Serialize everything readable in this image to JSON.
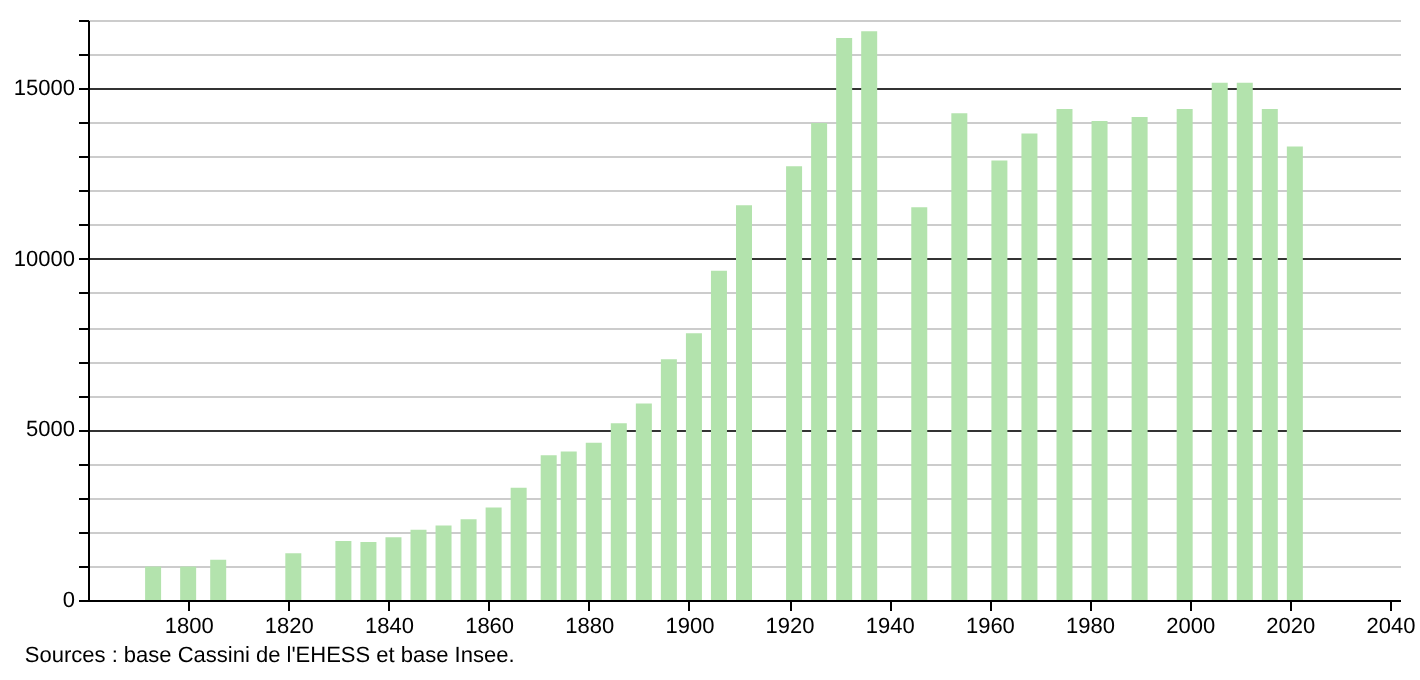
{
  "chart_data": {
    "type": "bar",
    "x": [
      1793,
      1800,
      1806,
      1821,
      1831,
      1836,
      1841,
      1846,
      1851,
      1856,
      1861,
      1866,
      1872,
      1876,
      1881,
      1886,
      1891,
      1896,
      1901,
      1906,
      1911,
      1921,
      1926,
      1931,
      1936,
      1946,
      1954,
      1962,
      1968,
      1975,
      1982,
      1990,
      1999,
      2006,
      2011,
      2016,
      2021
    ],
    "values": [
      980,
      980,
      1180,
      1370,
      1730,
      1700,
      1840,
      2060,
      2180,
      2370,
      2710,
      3290,
      4240,
      4350,
      4610,
      5180,
      5760,
      7060,
      7820,
      9650,
      11570,
      12710,
      13980,
      16470,
      16670,
      11510,
      14270,
      12880,
      13670,
      14390,
      14040,
      14160,
      14390,
      15160,
      15160,
      14390,
      13290
    ],
    "color": "#b3e3ad",
    "xlim": [
      1780,
      2042
    ],
    "xticks": [
      1800,
      1820,
      1840,
      1860,
      1880,
      1900,
      1920,
      1940,
      1960,
      1980,
      2000,
      2020,
      2040
    ],
    "ylim": [
      0,
      17000
    ],
    "yticks": [
      0,
      {
        "value": 1000,
        "label": null
      },
      {
        "value": 2000,
        "label": null
      },
      {
        "value": 3000,
        "label": null
      },
      {
        "value": 4000,
        "label": null
      },
      5000,
      {
        "value": 6000,
        "label": null
      },
      {
        "value": 7000,
        "label": null
      },
      {
        "value": 8000,
        "label": null
      },
      {
        "value": 9000,
        "label": null
      },
      10000,
      {
        "value": 11000,
        "label": null
      },
      {
        "value": 12000,
        "label": null
      },
      {
        "value": 13000,
        "label": null
      },
      {
        "value": 14000,
        "label": null
      },
      15000,
      {
        "value": 16000,
        "label": null
      },
      {
        "value": 17000,
        "label": null
      }
    ],
    "grid": "y",
    "annotations": [
      "Sources : base Cassini de l'EHESS et base Insee."
    ]
  }
}
